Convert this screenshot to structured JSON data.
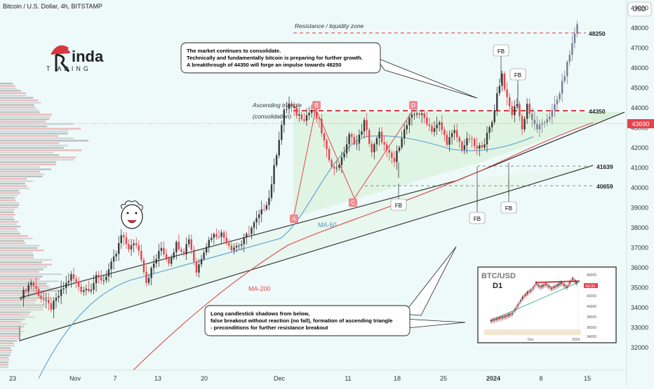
{
  "header": {
    "symbol": "Bitcoin / U.S. Dollar, 4h, BITSTAMP",
    "currency_badge": "USD"
  },
  "logo": {
    "text_main": "inda",
    "text_sub": "T  ADING",
    "icon": "santa-hat-logo-icon"
  },
  "mascot": {
    "icon": "smiley-face-icon"
  },
  "annotations": {
    "resistance_zone": "Resistance / liquidity zone",
    "triangle_title": "Ascending triangle",
    "triangle_sub": "(consolidation)",
    "ma50_label": "MA-50",
    "ma200_label": "MA-200",
    "callout_top": [
      "The market continues to consolidate.",
      "Technically and fundamentally bitcoin is preparing for further growth.",
      "A breakthrough of 44350 will forge an impulse towards 48250"
    ],
    "callout_bottom": [
      "Long candlestick shadows from below,",
      "false breakout without reaction (no fall), formation of ascending triangle",
      "- preconditions for further resistance breakout"
    ],
    "wave_labels": [
      "A",
      "B",
      "C",
      "D"
    ],
    "fb_label": "FB"
  },
  "levels": {
    "r48250": "48250",
    "r44350": "44350",
    "s41639": "41639",
    "s40659": "40659",
    "current": "43690"
  },
  "inset": {
    "title": "BTC/USD",
    "timeframe": "D1",
    "x_labels": [
      "Dec",
      "2024"
    ],
    "y_labels": [
      "46000",
      "44000",
      "42000",
      "40000",
      "38000",
      "36000",
      "34000"
    ],
    "price_tag": "43720"
  },
  "colors": {
    "background": "#eefaf9",
    "up_candle": "#3a3a3a",
    "down_candle": "#e8414a",
    "breakout_candle": "#7a7a92",
    "ma50": "#5b9fd2",
    "ma200": "#e04848",
    "resistance": "#d9363f",
    "price_tag": "#e8414a",
    "triangle_fill": "#d6efd2"
  },
  "chart_data": {
    "type": "candlestick",
    "title": "Bitcoin / U.S. Dollar, 4h, BITSTAMP",
    "x_tick_labels": [
      "23",
      "Nov",
      "7",
      "13",
      "20",
      "Dec",
      "11",
      "18",
      "25",
      "2024",
      "8",
      "15"
    ],
    "y_tick_labels": [
      "32000",
      "33000",
      "34000",
      "35000",
      "36000",
      "37000",
      "38000",
      "39000",
      "40000",
      "41000",
      "42000",
      "43000",
      "44000",
      "45000",
      "46000",
      "47000",
      "48000",
      "49000"
    ],
    "ylim": [
      31600,
      49400
    ],
    "horizontal_levels": [
      48250,
      44350,
      41639,
      40659
    ],
    "current_price": 43690,
    "close_path": [
      [
        0,
        34600
      ],
      [
        4,
        35300
      ],
      [
        8,
        34500
      ],
      [
        12,
        34000
      ],
      [
        16,
        34800
      ],
      [
        20,
        35600
      ],
      [
        24,
        34900
      ],
      [
        28,
        35000
      ],
      [
        30,
        35500
      ],
      [
        33,
        35400
      ],
      [
        35,
        35900
      ],
      [
        38,
        36700
      ],
      [
        40,
        37600
      ],
      [
        43,
        37000
      ],
      [
        46,
        37200
      ],
      [
        48,
        36500
      ],
      [
        50,
        35300
      ],
      [
        53,
        36200
      ],
      [
        56,
        37000
      ],
      [
        59,
        36300
      ],
      [
        62,
        37200
      ],
      [
        65,
        36800
      ],
      [
        67,
        37500
      ],
      [
        70,
        35800
      ],
      [
        73,
        36900
      ],
      [
        76,
        37600
      ],
      [
        80,
        37700
      ],
      [
        84,
        37000
      ],
      [
        88,
        37200
      ],
      [
        92,
        38000
      ],
      [
        96,
        38800
      ],
      [
        99,
        39500
      ],
      [
        101,
        41000
      ],
      [
        103,
        42500
      ],
      [
        105,
        43800
      ],
      [
        107,
        44200
      ],
      [
        110,
        43700
      ],
      [
        113,
        43500
      ],
      [
        116,
        43900
      ],
      [
        119,
        43300
      ],
      [
        122,
        41800
      ],
      [
        125,
        40900
      ],
      [
        128,
        41400
      ],
      [
        131,
        42600
      ],
      [
        134,
        42200
      ],
      [
        137,
        43300
      ],
      [
        140,
        41800
      ],
      [
        143,
        42700
      ],
      [
        146,
        41800
      ],
      [
        149,
        41300
      ],
      [
        152,
        42600
      ],
      [
        155,
        43400
      ],
      [
        158,
        43800
      ],
      [
        161,
        43500
      ],
      [
        164,
        42900
      ],
      [
        167,
        43200
      ],
      [
        170,
        42300
      ],
      [
        173,
        42800
      ],
      [
        176,
        42000
      ],
      [
        179,
        42500
      ],
      [
        182,
        41900
      ],
      [
        185,
        42300
      ],
      [
        188,
        43300
      ],
      [
        190,
        44700
      ],
      [
        192,
        45700
      ],
      [
        194,
        44400
      ],
      [
        196,
        43700
      ],
      [
        198,
        44300
      ],
      [
        200,
        42900
      ],
      [
        202,
        44200
      ],
      [
        204,
        43300
      ],
      [
        206,
        43000
      ],
      [
        208,
        43100
      ],
      [
        210,
        43500
      ],
      [
        212,
        43800
      ],
      [
        214,
        44400
      ],
      [
        216,
        45200
      ],
      [
        218,
        46200
      ],
      [
        220,
        47200
      ],
      [
        222,
        48250
      ]
    ]
  }
}
